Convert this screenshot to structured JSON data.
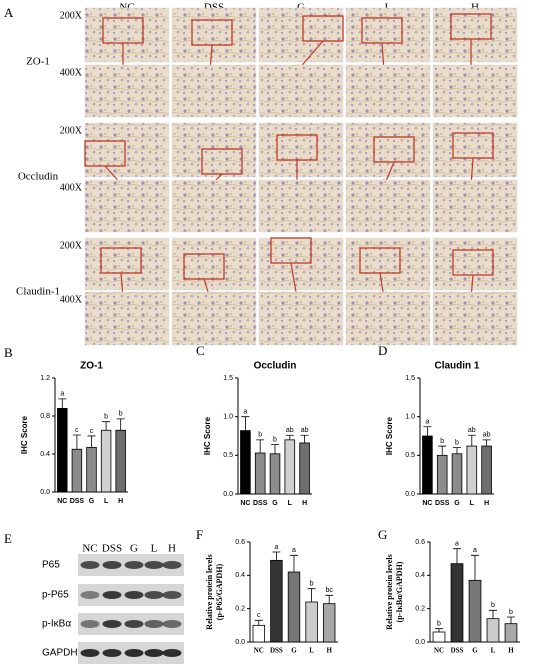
{
  "panel_labels": [
    "A",
    "B",
    "C",
    "D",
    "E",
    "F",
    "G"
  ],
  "histology": {
    "columns": [
      "NC",
      "DSS",
      "G",
      "L",
      "H"
    ],
    "rows": [
      {
        "marker": "ZO-1",
        "magnifications": [
          "200X",
          "400X"
        ]
      },
      {
        "marker": "Occludin",
        "magnifications": [
          "200X",
          "400X"
        ]
      },
      {
        "marker": "Claudin-1",
        "magnifications": [
          "200X",
          "400X"
        ]
      }
    ]
  },
  "blot": {
    "lanes": [
      "NC",
      "DSS",
      "G",
      "L",
      "H"
    ],
    "proteins": [
      "P65",
      "p-P65",
      "p-IκBα",
      "GAPDH"
    ]
  },
  "chart_data": [
    {
      "type": "bar",
      "title": "ZO-1",
      "ylabel": [
        "IHC Score"
      ],
      "categories": [
        "NC",
        "DSS",
        "G",
        "L",
        "H"
      ],
      "values": [
        0.88,
        0.45,
        0.47,
        0.65,
        0.65
      ],
      "errors": [
        0.1,
        0.15,
        0.12,
        0.09,
        0.12
      ],
      "annotations": [
        "a",
        "c",
        "c",
        "b",
        "b"
      ],
      "colors": [
        "#000000",
        "#8c8c8c",
        "#8c8c8c",
        "#d0d0d0",
        "#6e6e6e"
      ],
      "ylim": [
        0,
        1.2
      ],
      "yticks": [
        {
          "value": 0,
          "label": "0.0"
        },
        0.4,
        0.8,
        1.2
      ]
    },
    {
      "type": "bar",
      "title": "Occludin",
      "ylabel": [
        "IHC Score"
      ],
      "categories": [
        "NC",
        "DSS",
        "G",
        "L",
        "H"
      ],
      "values": [
        0.82,
        0.53,
        0.52,
        0.7,
        0.66
      ],
      "errors": [
        0.18,
        0.17,
        0.12,
        0.06,
        0.1
      ],
      "annotations": [
        "a",
        "b",
        "b",
        "ab",
        "ab"
      ],
      "colors": [
        "#000000",
        "#8c8c8c",
        "#8c8c8c",
        "#d0d0d0",
        "#6e6e6e"
      ],
      "ylim": [
        0,
        1.5
      ],
      "yticks": [
        {
          "value": 0,
          "label": "0.0"
        },
        0.5,
        {
          "value": 1,
          "label": "1.0"
        },
        1.5
      ]
    },
    {
      "type": "bar",
      "title": "Claudin 1",
      "ylabel": [
        "IHC Score"
      ],
      "categories": [
        "NC",
        "DSS",
        "G",
        "L",
        "H"
      ],
      "values": [
        0.75,
        0.5,
        0.52,
        0.62,
        0.62
      ],
      "errors": [
        0.12,
        0.12,
        0.08,
        0.14,
        0.08
      ],
      "annotations": [
        "a",
        "b",
        "b",
        "ab",
        "ab"
      ],
      "colors": [
        "#000000",
        "#8c8c8c",
        "#8c8c8c",
        "#d0d0d0",
        "#6e6e6e"
      ],
      "ylim": [
        0,
        1.5
      ],
      "yticks": [
        {
          "value": 0,
          "label": "0.0"
        },
        0.5,
        {
          "value": 1,
          "label": "1.0"
        },
        1.5
      ]
    },
    {
      "type": "bar",
      "ylabel": [
        "Relative protein levels",
        "(p-P65/GAPDH)"
      ],
      "categories": [
        "NC",
        "DSS",
        "G",
        "L",
        "H"
      ],
      "values": [
        0.1,
        0.49,
        0.42,
        0.24,
        0.23
      ],
      "errors": [
        0.03,
        0.05,
        0.1,
        0.08,
        0.05
      ],
      "annotations": [
        "c",
        "a",
        "a",
        "b",
        "bc"
      ],
      "colors": [
        "#ffffff",
        "#333333",
        "#777777",
        "#cccccc",
        "#a8a8a8"
      ],
      "ylim": [
        0,
        0.6
      ],
      "yticks": [
        {
          "value": 0,
          "label": "0.0"
        },
        0.2,
        0.4,
        0.6
      ]
    },
    {
      "type": "bar",
      "ylabel": [
        "Relative protein levels",
        "(p-IκBα/GAPDH)"
      ],
      "categories": [
        "NC",
        "DSS",
        "G",
        "L",
        "H"
      ],
      "values": [
        0.06,
        0.47,
        0.37,
        0.14,
        0.11
      ],
      "errors": [
        0.02,
        0.09,
        0.15,
        0.05,
        0.04
      ],
      "annotations": [
        "b",
        "a",
        "a",
        "b",
        "b"
      ],
      "colors": [
        "#ffffff",
        "#333333",
        "#777777",
        "#cccccc",
        "#a8a8a8"
      ],
      "ylim": [
        0,
        0.6
      ],
      "yticks": [
        {
          "value": 0,
          "label": "0.0"
        },
        0.2,
        0.4,
        0.6
      ]
    }
  ]
}
